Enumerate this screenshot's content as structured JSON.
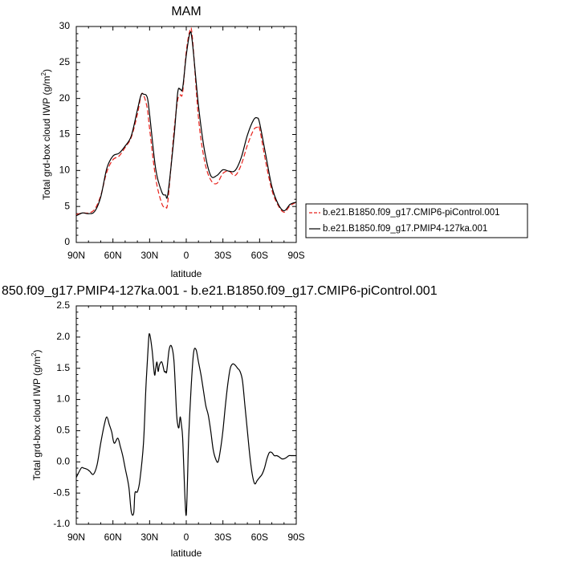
{
  "chart_data": [
    {
      "type": "line",
      "title": "MAM",
      "xlabel": "latitude",
      "ylabel": "Total grd-box cloud IWP (g/m",
      "ylabel_sup": "2",
      "ylabel_close": ")",
      "xlim": [
        90,
        -90
      ],
      "ylim": [
        0,
        30
      ],
      "x_ticks": [
        90,
        60,
        30,
        0,
        -30,
        -60,
        -90
      ],
      "x_tick_labels": [
        "90N",
        "60N",
        "30N",
        "0",
        "30S",
        "60S",
        "90S"
      ],
      "y_ticks": [
        0,
        5,
        10,
        15,
        20,
        25,
        30
      ],
      "y_tick_labels": [
        "0",
        "5",
        "10",
        "15",
        "20",
        "25",
        "30"
      ],
      "legend_position": "right",
      "series": [
        {
          "name": "b.e21.B1850.f09_g17.CMIP6-piControl.001",
          "color": "#e8201a",
          "dash": true,
          "x": [
            90,
            85,
            80,
            75,
            70,
            65,
            60,
            55,
            50,
            45,
            40,
            37,
            35,
            32,
            30,
            25,
            20,
            17,
            15,
            10,
            7,
            5,
            3,
            0,
            -3,
            -5,
            -10,
            -15,
            -20,
            -25,
            -30,
            -35,
            -40,
            -45,
            -50,
            -55,
            -58,
            -60,
            -65,
            -70,
            -75,
            -80,
            -85,
            -90
          ],
          "y": [
            3.9,
            4.1,
            4.1,
            4.6,
            6.5,
            9.8,
            11.5,
            12,
            13.2,
            14.6,
            17.8,
            20.4,
            20.5,
            18.7,
            15.8,
            8.9,
            5.4,
            5,
            5.8,
            15.5,
            19.8,
            20.5,
            20.8,
            26.5,
            29.4,
            28.5,
            17.3,
            11.3,
            8.7,
            8.2,
            9.6,
            9.9,
            9.3,
            10.8,
            13.5,
            15.6,
            16,
            15.8,
            11.2,
            7.3,
            5.2,
            4.2,
            5.1,
            5.6
          ]
        },
        {
          "name": "b.e21.B1850.f09_g17.PMIP4-127ka.001",
          "color": "#000000",
          "dash": false,
          "x": [
            90,
            85,
            80,
            75,
            70,
            65,
            60,
            55,
            50,
            45,
            40,
            37,
            35,
            32,
            30,
            25,
            20,
            17,
            15,
            10,
            7,
            5,
            3,
            0,
            -3,
            -5,
            -10,
            -15,
            -20,
            -25,
            -30,
            -35,
            -40,
            -45,
            -50,
            -55,
            -58,
            -60,
            -65,
            -70,
            -75,
            -80,
            -85,
            -90
          ],
          "y": [
            3.7,
            4.1,
            4,
            4.3,
            6.3,
            10.3,
            12,
            12.4,
            13.4,
            14.8,
            18.4,
            20.5,
            20.6,
            20.2,
            17.8,
            10.2,
            7,
            6.6,
            6.8,
            14.7,
            20.8,
            21.3,
            21.4,
            26,
            29.1,
            27.8,
            19,
            12.7,
            9.3,
            9.3,
            10.1,
            9.9,
            10,
            11.8,
            14.9,
            17,
            17.3,
            16.6,
            12.2,
            7.8,
            5.4,
            4.4,
            5.3,
            5.6
          ]
        }
      ]
    },
    {
      "type": "line",
      "title": "850.f09_g17.PMIP4-127ka.001 - b.e21.B1850.f09_g17.CMIP6-piControl.001",
      "xlabel": "latitude",
      "ylabel": "Total grd-box cloud IWP (g/m",
      "ylabel_sup": "2",
      "ylabel_close": ")",
      "xlim": [
        90,
        -90
      ],
      "ylim": [
        -1.0,
        2.5
      ],
      "x_ticks": [
        90,
        60,
        30,
        0,
        -30,
        -60,
        -90
      ],
      "x_tick_labels": [
        "90N",
        "60N",
        "30N",
        "0",
        "30S",
        "60S",
        "90S"
      ],
      "y_ticks": [
        -1.0,
        -0.5,
        0.0,
        0.5,
        1.0,
        1.5,
        2.0,
        2.5
      ],
      "y_tick_labels": [
        "-1.0",
        "-0.5",
        "0.0",
        "0.5",
        "1.0",
        "1.5",
        "2.0",
        "2.5"
      ],
      "series": [
        {
          "color": "#000000",
          "dash": false,
          "x": [
            90,
            86,
            84,
            81,
            79,
            76,
            73,
            70,
            67,
            65,
            63,
            61,
            59,
            56,
            54,
            52,
            50,
            47,
            45,
            43,
            42,
            40,
            38,
            35,
            33,
            31,
            30,
            28,
            26,
            25,
            24,
            23,
            22,
            20,
            18,
            17,
            16,
            14,
            12,
            10,
            8,
            7,
            6,
            5,
            4,
            3,
            2,
            1,
            0,
            -1,
            -2,
            -4,
            -6,
            -8,
            -10,
            -12,
            -14,
            -16,
            -18,
            -20,
            -22,
            -24,
            -26,
            -28,
            -30,
            -32,
            -34,
            -36,
            -38,
            -40,
            -42,
            -44,
            -46,
            -48,
            -50,
            -52,
            -54,
            -56,
            -58,
            -60,
            -62,
            -64,
            -66,
            -68,
            -70,
            -72,
            -74,
            -76,
            -78,
            -80,
            -82,
            -84,
            -86,
            -88,
            -90
          ],
          "y": [
            -0.25,
            -0.1,
            -0.1,
            -0.12,
            -0.15,
            -0.2,
            -0.05,
            0.3,
            0.6,
            0.72,
            0.6,
            0.48,
            0.3,
            0.38,
            0.25,
            0.1,
            -0.1,
            -0.4,
            -0.8,
            -0.82,
            -0.5,
            -0.48,
            -0.3,
            0.3,
            1.2,
            1.9,
            2.05,
            1.8,
            1.4,
            1.5,
            1.6,
            1.45,
            1.55,
            1.6,
            1.45,
            1.45,
            1.45,
            1.8,
            1.85,
            1.6,
            0.8,
            0.6,
            0.55,
            0.72,
            0.6,
            0.4,
            -0.1,
            -0.6,
            -0.85,
            -0.3,
            0.4,
            1.2,
            1.75,
            1.8,
            1.6,
            1.4,
            1.15,
            0.9,
            0.75,
            0.5,
            0.2,
            0.05,
            0.0,
            0.2,
            0.5,
            0.9,
            1.25,
            1.5,
            1.57,
            1.55,
            1.5,
            1.45,
            1.3,
            0.9,
            0.5,
            0.1,
            -0.2,
            -0.35,
            -0.3,
            -0.25,
            -0.2,
            -0.1,
            0.05,
            0.15,
            0.15,
            0.1,
            0.1,
            0.08,
            0.05,
            0.05,
            0.07,
            0.1,
            0.1,
            0.1,
            0.1
          ]
        }
      ]
    }
  ]
}
